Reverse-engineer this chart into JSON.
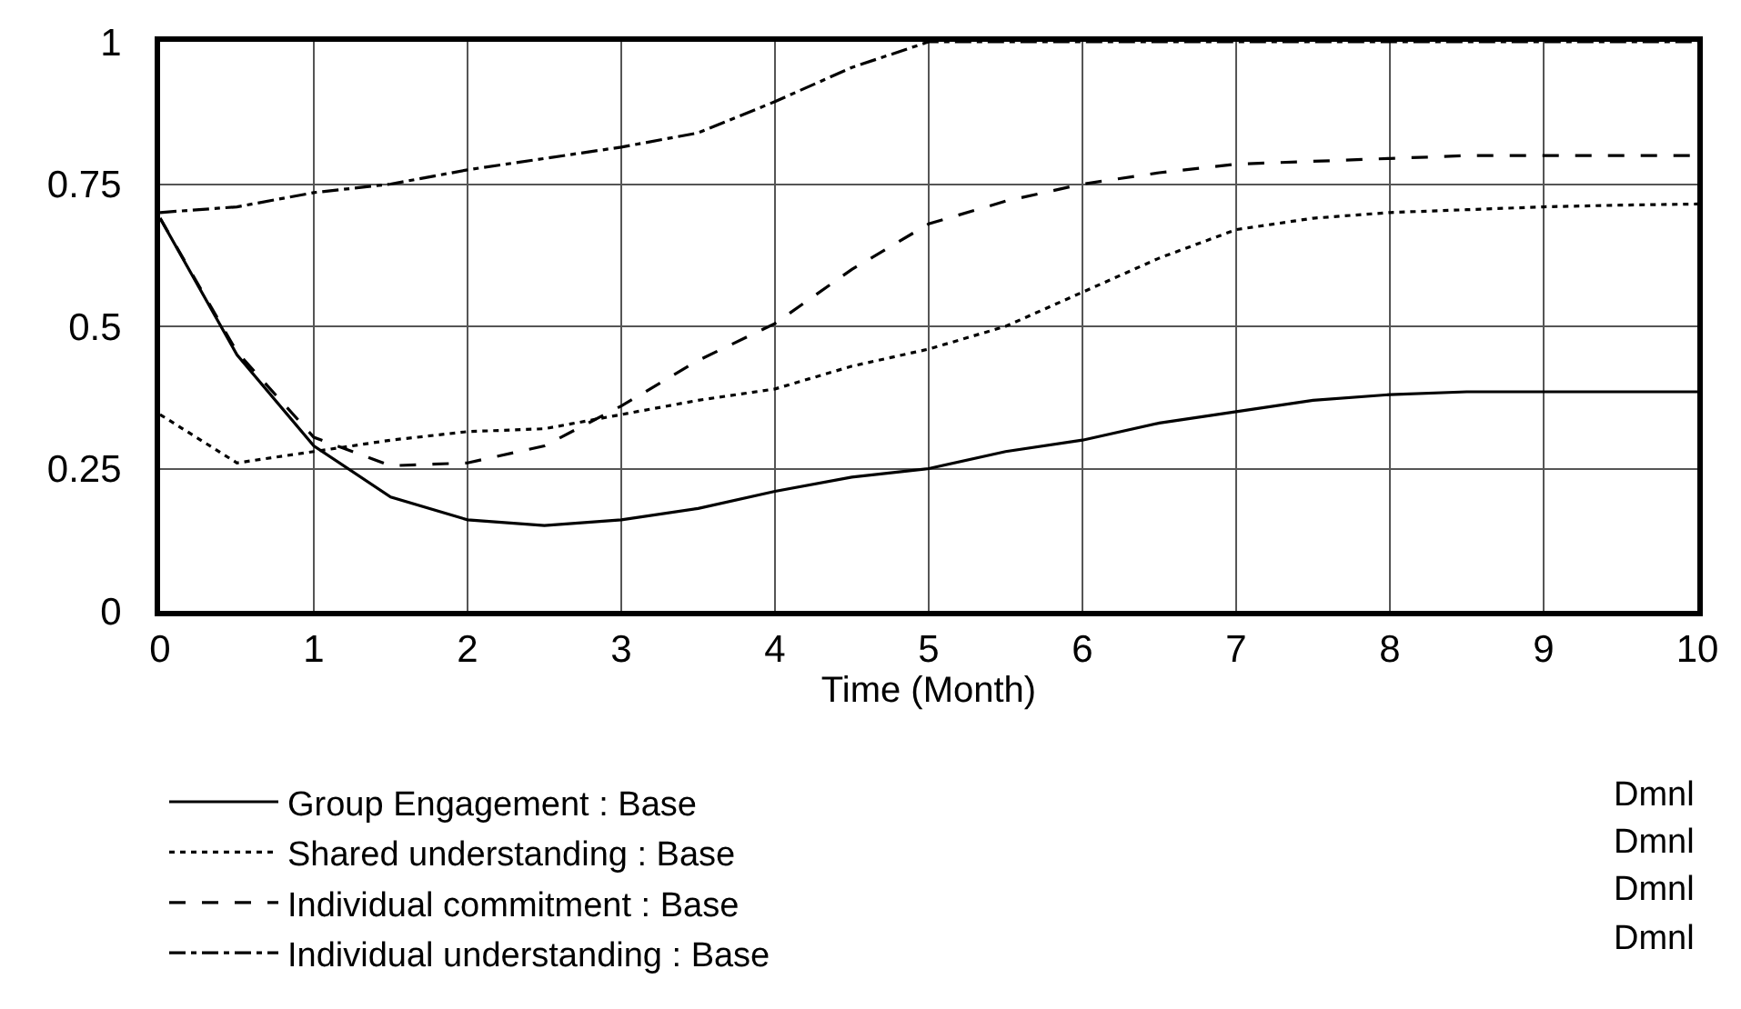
{
  "chart_data": {
    "type": "line",
    "xlabel": "Time (Month)",
    "xlim": [
      0,
      10
    ],
    "xticks": [
      0,
      1,
      2,
      3,
      4,
      5,
      6,
      7,
      8,
      9,
      10
    ],
    "ylim": [
      0,
      1
    ],
    "yticks": [
      0,
      0.25,
      0.5,
      0.75,
      1
    ],
    "grid": true,
    "legend": "bottom",
    "marker": "none",
    "annotations": [
      "Dmnl",
      "Dmnl",
      "Dmnl",
      "Dmnl"
    ],
    "x": [
      0,
      0.5,
      1,
      1.5,
      2,
      2.5,
      3,
      3.5,
      4,
      4.5,
      5,
      5.5,
      6,
      6.5,
      7,
      7.5,
      8,
      8.5,
      9,
      9.5,
      10
    ],
    "series": [
      {
        "name": "Group Engagement : Base",
        "color": "#000000",
        "line_style": "solid",
        "values": [
          0.69,
          0.45,
          0.29,
          0.2,
          0.16,
          0.15,
          0.16,
          0.18,
          0.21,
          0.235,
          0.25,
          0.28,
          0.3,
          0.33,
          0.35,
          0.37,
          0.38,
          0.385,
          0.385,
          0.385,
          0.385
        ]
      },
      {
        "name": "Shared understanding : Base",
        "color": "#000000",
        "line_style": "dotted",
        "values": [
          0.345,
          0.26,
          0.28,
          0.3,
          0.315,
          0.32,
          0.345,
          0.37,
          0.39,
          0.43,
          0.46,
          0.5,
          0.56,
          0.62,
          0.67,
          0.69,
          0.7,
          0.705,
          0.71,
          0.713,
          0.715
        ]
      },
      {
        "name": "Individual commitment : Base",
        "color": "#000000",
        "line_style": "dashed",
        "values": [
          0.69,
          0.455,
          0.305,
          0.255,
          0.26,
          0.29,
          0.36,
          0.44,
          0.505,
          0.6,
          0.68,
          0.72,
          0.75,
          0.77,
          0.785,
          0.79,
          0.795,
          0.8,
          0.8,
          0.8,
          0.8
        ]
      },
      {
        "name": "Individual understanding : Base",
        "color": "#000000",
        "line_style": "dashdot",
        "values": [
          0.7,
          0.71,
          0.735,
          0.75,
          0.775,
          0.795,
          0.815,
          0.84,
          0.895,
          0.955,
          1.0,
          1.0,
          1.0,
          1.0,
          1.0,
          1.0,
          1.0,
          1.0,
          1.0,
          1.0,
          1.0
        ]
      }
    ]
  }
}
